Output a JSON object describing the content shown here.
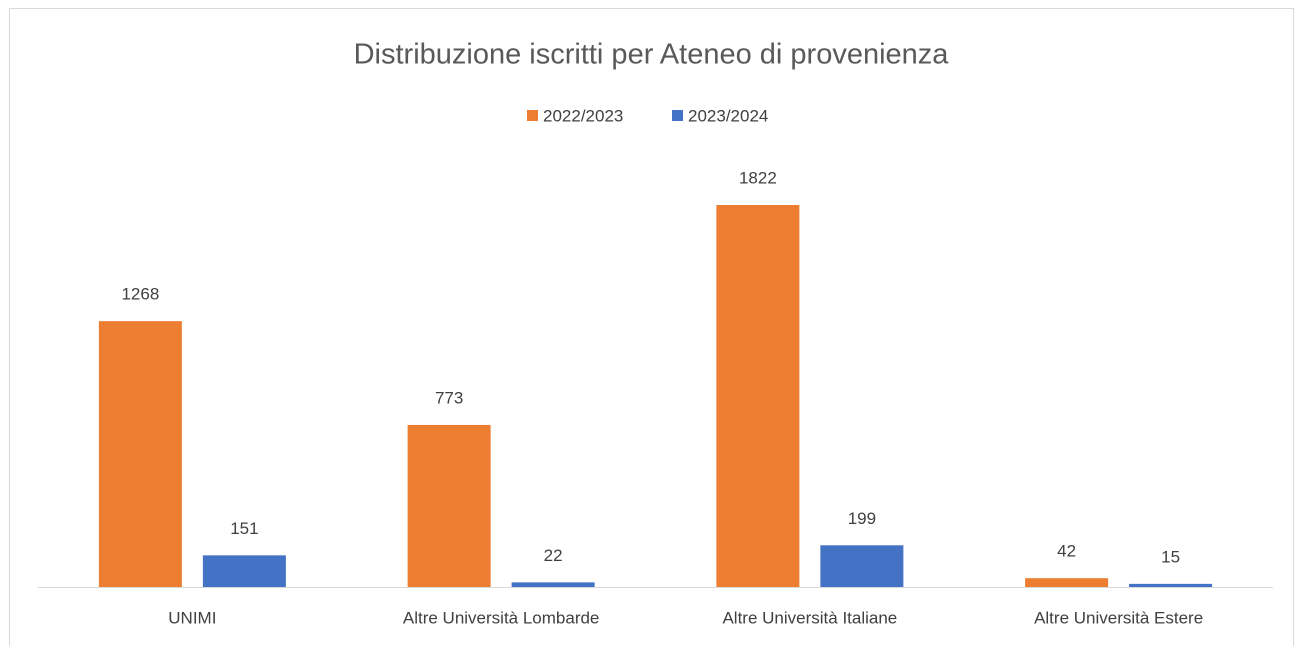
{
  "chart_data": {
    "type": "bar",
    "title": "Distribuzione iscritti per Ateneo di provenienza",
    "categories": [
      "UNIMI",
      "Altre Università Lombarde",
      "Altre Università Italiane",
      "Altre Università Estere"
    ],
    "series": [
      {
        "name": "2022/2023",
        "color": "#ED7D31",
        "values": [
          1268,
          773,
          1822,
          42
        ]
      },
      {
        "name": "2023/2024",
        "color": "#4472C4",
        "values": [
          151,
          22,
          199,
          15
        ]
      }
    ],
    "legend": "top"
  }
}
